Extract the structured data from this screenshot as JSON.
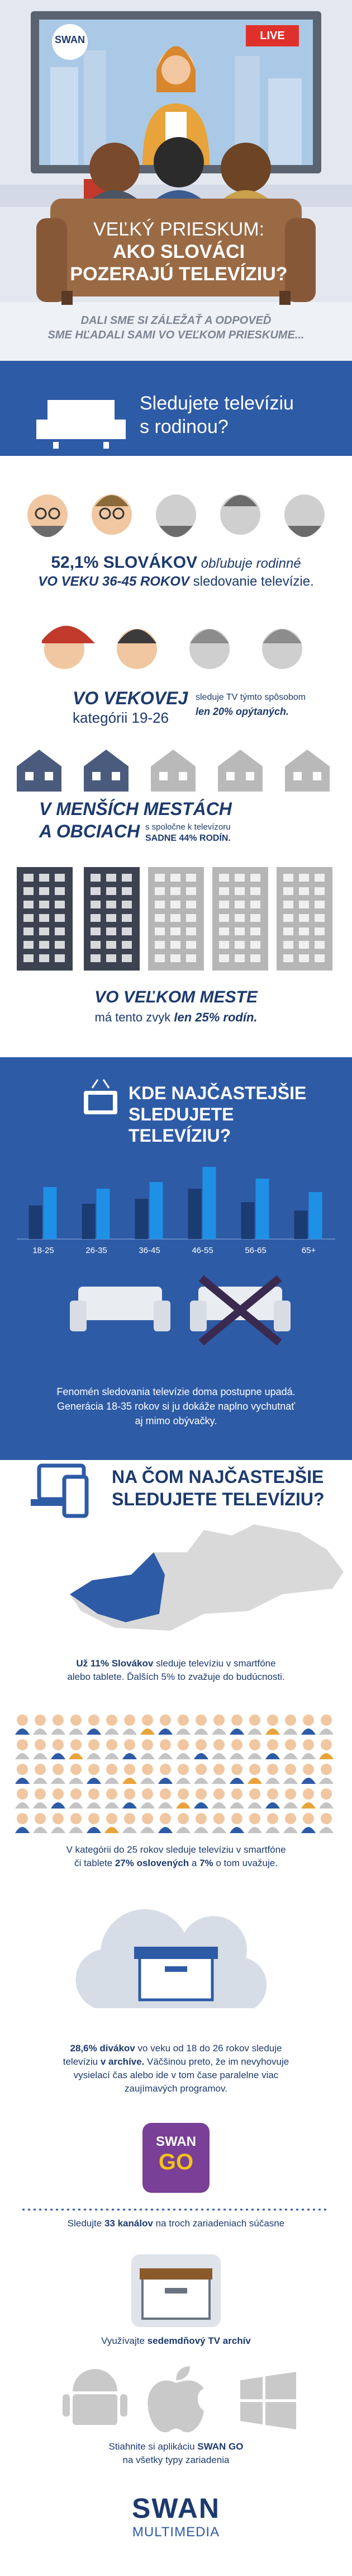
{
  "header": {
    "tv_logo": "SWAN",
    "live": "LIVE",
    "title_line1": "VEĽKÝ PRIESKUM:",
    "title_line2": "AKO SLOVÁCI",
    "title_line3": "POZERAJÚ TELEVÍZIU?",
    "subtitle_line1": "DALI SME SI ZÁLEŽAŤ A ODPOVEĎ",
    "subtitle_line2": "SME HĽADALI SAMI VO VEĽKOM PRIESKUME..."
  },
  "family": {
    "heading_line1": "Sledujete televíziu",
    "heading_line2": "s rodinou?",
    "fact1": [
      "52,1% SLOVÁKOV",
      "obľubuje rodinné",
      "VO VEKU 36-45 ROKOV",
      "sledovanie televízie."
    ],
    "fact2": [
      "VO VEKOVEJ",
      "kategórii 19-26",
      "sleduje TV týmto spôsobom",
      "len 20% opýtaných."
    ],
    "fact3": [
      "V MENŠÍCH MESTÁCH",
      "A OBCIACH",
      "s spoločne k televízoru",
      "SADNE 44% RODÍN."
    ],
    "fact4": [
      "VO VEĽKOM MESTE",
      "má tento zvyk",
      "len 25% rodín."
    ]
  },
  "chart_data": {
    "type": "bar",
    "title": "KDE NAJČASTEJŠIE SLEDUJETE TELEVÍZIU?",
    "categories": [
      "18-25",
      "26-35",
      "36-45",
      "46-55",
      "56-65",
      "65+"
    ],
    "series": [
      {
        "color": "#1a3c73",
        "values": [
          20,
          21,
          24,
          30,
          22,
          17
        ]
      },
      {
        "color": "#1e90e6",
        "values": [
          31,
          30,
          34,
          43,
          36,
          28
        ]
      }
    ],
    "ylim": [
      0,
      50
    ]
  },
  "location": {
    "caption_line1": "Fenomén sledovania televízie doma postupne upadá.",
    "caption_line2": "Generácia 18-35 rokov si ju dokáže naplno vychutnať",
    "caption_line3": "aj mimo obývačky."
  },
  "devices": {
    "heading_line1": "NA ČOM NAJČASTEJŠIE",
    "heading_line2": "SLEDUJETE TELEVÍZIU?",
    "fact1": [
      "Už 11% Slovákov",
      "sleduje televíziu v smartfóne",
      "alebo tablete. Ďalších 5% to zvažuje do budúcnosti."
    ],
    "fact2": [
      "V kategórii do 25 rokov sleduje televíziu v smartfóne",
      "či tablete",
      "27% oslovených",
      "a",
      "7%",
      "o tom uvažuje."
    ],
    "fact3": [
      "28,6% divákov",
      "vo veku od 18 do 26 rokov sleduje",
      "televíziu",
      "v archíve.",
      "Väčšinou preto, že im nevyhovuje",
      "vysielací čas alebo ide v tom čase paralelne viac",
      "zaujímavých programov."
    ]
  },
  "swan_go": {
    "logo_top": "SWAN",
    "logo_bottom": "GO",
    "feature1": [
      "Sledujte",
      "33 kanálov",
      "na troch zariadeniach súčasne"
    ],
    "feature2": [
      "Využívajte",
      "sedemdňový TV archív"
    ],
    "feature3": [
      "Stiahnite si aplikáciu",
      "SWAN GO",
      "na všetky typy zariadenia"
    ]
  },
  "footer": {
    "logo_top": "SWAN",
    "logo_bottom": "MULTIMEDIA"
  }
}
